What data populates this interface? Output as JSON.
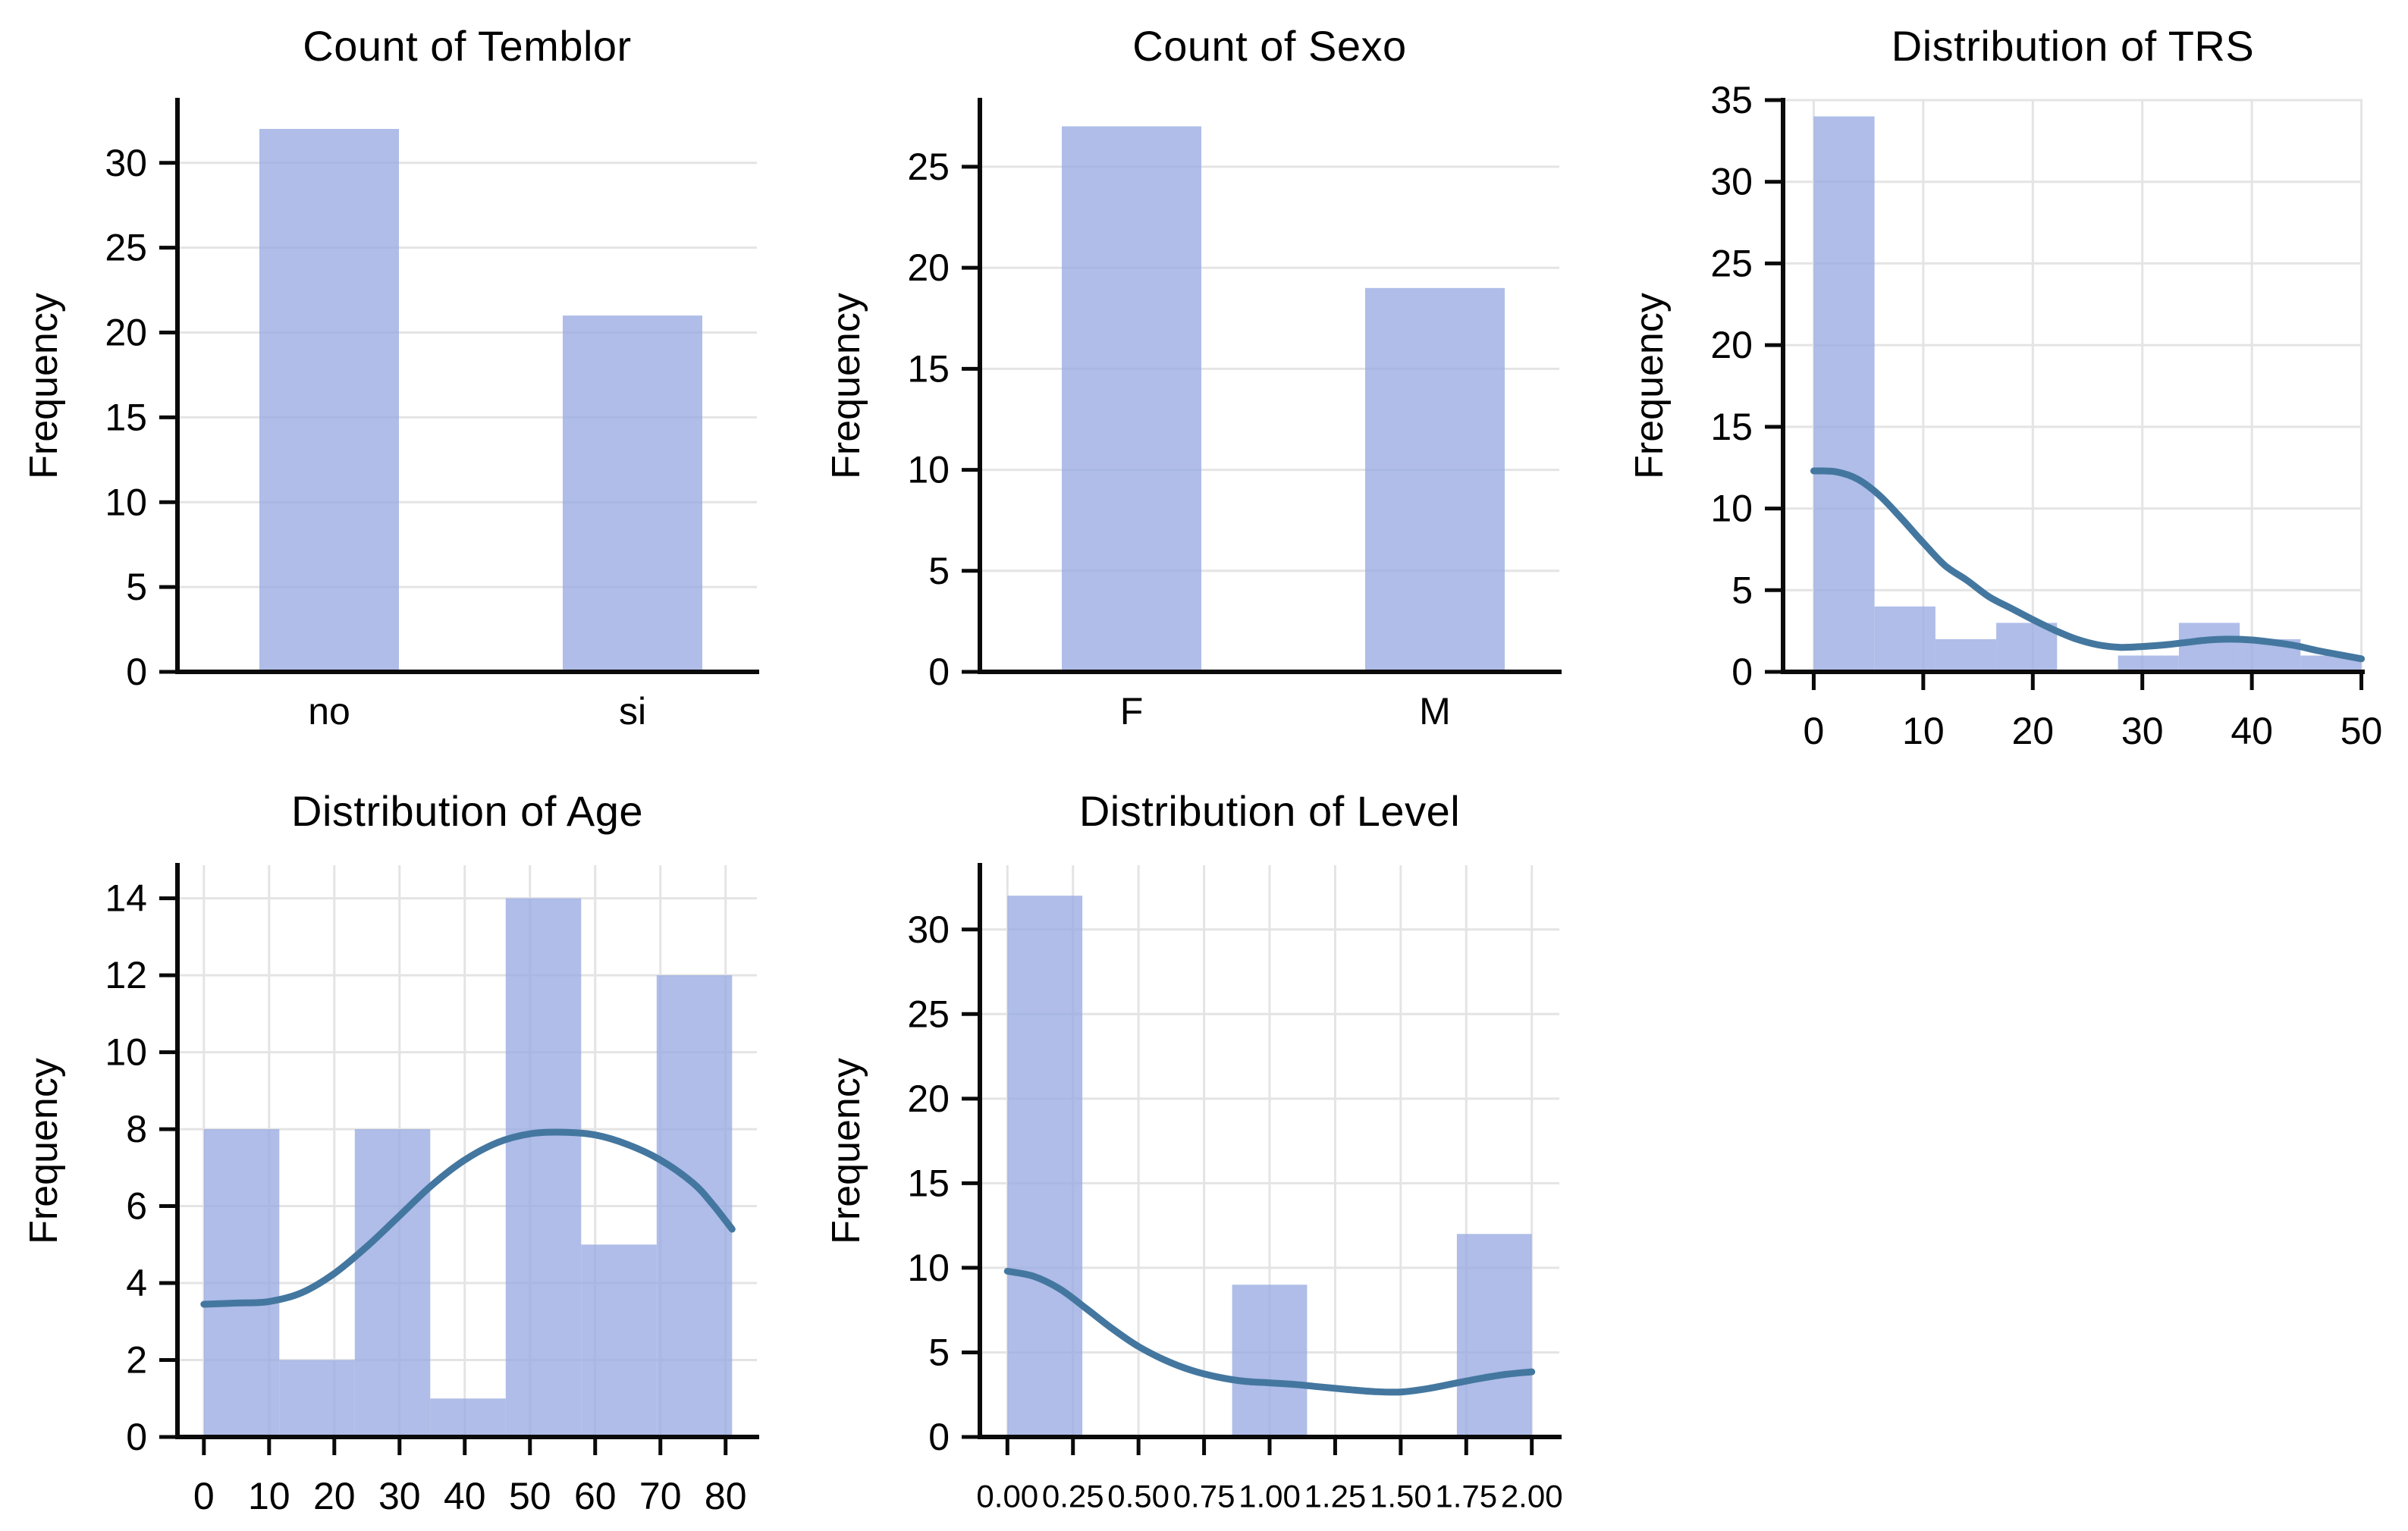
{
  "figure": {
    "background": "#ffffff",
    "bar_color": "#98aae2",
    "bar_opacity": 0.78,
    "bar_color_flat": "#b2bfe9",
    "kde_color": "#44779f",
    "kde_width": 9,
    "grid_color": "#e4e4e4",
    "axis_color": "#0a0a0a",
    "tick_font_size": 50,
    "ylabel_font_size": 52
  },
  "chart_data": [
    {
      "type": "bar",
      "title": "Count of Temblor",
      "ylabel": "Frequency",
      "categories": [
        "no",
        "si"
      ],
      "values": [
        32,
        21
      ],
      "bar_width": 0.46,
      "xlim": [
        -0.5,
        1.41
      ],
      "ylim": [
        0,
        33.7
      ],
      "yticks": [
        0,
        5,
        10,
        15,
        20,
        25,
        30
      ],
      "grid": "horizontal",
      "legend": "none"
    },
    {
      "type": "bar",
      "title": "Count of Sexo",
      "ylabel": "Frequency",
      "categories": [
        "F",
        "M"
      ],
      "values": [
        27,
        19
      ],
      "bar_width": 0.46,
      "xlim": [
        -0.5,
        1.41
      ],
      "ylim": [
        0,
        28.3
      ],
      "yticks": [
        0,
        5,
        10,
        15,
        20,
        25
      ],
      "grid": "horizontal",
      "legend": "none"
    },
    {
      "type": "histogram",
      "title": "Distribution of TRS",
      "ylabel": "Frequency",
      "bins": {
        "start": 0,
        "end": 50,
        "counts": [
          34,
          4,
          2,
          3,
          0,
          1,
          3,
          2,
          1
        ]
      },
      "kde": [
        [
          0,
          12.3
        ],
        [
          2,
          12.25
        ],
        [
          4,
          11.8
        ],
        [
          6,
          10.8
        ],
        [
          8,
          9.4
        ],
        [
          10,
          7.9
        ],
        [
          12,
          6.5
        ],
        [
          14,
          5.6
        ],
        [
          16,
          4.6
        ],
        [
          18,
          3.9
        ],
        [
          20,
          3.2
        ],
        [
          22,
          2.55
        ],
        [
          24,
          2.0
        ],
        [
          26,
          1.65
        ],
        [
          28,
          1.5
        ],
        [
          30,
          1.55
        ],
        [
          32,
          1.65
        ],
        [
          34,
          1.8
        ],
        [
          36,
          1.95
        ],
        [
          38,
          2.0
        ],
        [
          40,
          1.95
        ],
        [
          42,
          1.8
        ],
        [
          44,
          1.6
        ],
        [
          46,
          1.3
        ],
        [
          48,
          1.05
        ],
        [
          50,
          0.8
        ]
      ],
      "xlim": [
        -2.8,
        50.1
      ],
      "ylim": [
        0,
        35
      ],
      "xticks": [
        0,
        10,
        20,
        30,
        40,
        50
      ],
      "xtick_labels": [
        "0",
        "10",
        "20",
        "30",
        "40",
        "50"
      ],
      "yticks": [
        0,
        5,
        10,
        15,
        20,
        25,
        30,
        35
      ],
      "grid": "both",
      "xtick_font": 50
    },
    {
      "type": "histogram",
      "title": "Distribution of Age",
      "ylabel": "Frequency",
      "bins": {
        "start": 0,
        "end": 81,
        "counts": [
          8,
          2,
          8,
          1,
          14,
          5,
          12
        ]
      },
      "kde": [
        [
          0,
          3.45
        ],
        [
          5,
          3.48
        ],
        [
          10,
          3.52
        ],
        [
          15,
          3.75
        ],
        [
          20,
          4.25
        ],
        [
          25,
          4.95
        ],
        [
          30,
          5.75
        ],
        [
          35,
          6.55
        ],
        [
          40,
          7.2
        ],
        [
          45,
          7.65
        ],
        [
          50,
          7.88
        ],
        [
          55,
          7.92
        ],
        [
          60,
          7.85
        ],
        [
          65,
          7.6
        ],
        [
          70,
          7.2
        ],
        [
          75,
          6.6
        ],
        [
          78,
          6.05
        ],
        [
          81,
          5.4
        ]
      ],
      "xlim": [
        -4.05,
        84.8
      ],
      "ylim": [
        0,
        14.86
      ],
      "xticks": [
        0,
        10,
        20,
        30,
        40,
        50,
        60,
        70,
        80
      ],
      "xtick_labels": [
        "0",
        "10",
        "20",
        "30",
        "40",
        "50",
        "60",
        "70",
        "80"
      ],
      "yticks": [
        0,
        2,
        4,
        6,
        8,
        10,
        12,
        14
      ],
      "grid": "both",
      "xtick_font": 50
    },
    {
      "type": "histogram",
      "title": "Distribution of Level",
      "ylabel": "Frequency",
      "bins": {
        "start": 0,
        "end": 2,
        "counts": [
          32,
          0,
          0,
          9,
          0,
          0,
          12
        ]
      },
      "kde": [
        [
          0,
          9.8
        ],
        [
          0.1,
          9.5
        ],
        [
          0.2,
          8.75
        ],
        [
          0.3,
          7.6
        ],
        [
          0.4,
          6.4
        ],
        [
          0.5,
          5.35
        ],
        [
          0.6,
          4.55
        ],
        [
          0.7,
          3.95
        ],
        [
          0.8,
          3.55
        ],
        [
          0.9,
          3.3
        ],
        [
          1.0,
          3.2
        ],
        [
          1.1,
          3.1
        ],
        [
          1.2,
          2.95
        ],
        [
          1.3,
          2.8
        ],
        [
          1.4,
          2.68
        ],
        [
          1.5,
          2.66
        ],
        [
          1.6,
          2.85
        ],
        [
          1.7,
          3.15
        ],
        [
          1.8,
          3.45
        ],
        [
          1.9,
          3.7
        ],
        [
          2.0,
          3.85
        ]
      ],
      "xlim": [
        -0.105,
        2.105
      ],
      "ylim": [
        0,
        33.8
      ],
      "xticks": [
        0,
        0.25,
        0.5,
        0.75,
        1,
        1.25,
        1.5,
        1.75,
        2
      ],
      "xtick_labels": [
        "0.00",
        "0.25",
        "0.50",
        "0.75",
        "1.00",
        "1.25",
        "1.50",
        "1.75",
        "2.00"
      ],
      "yticks": [
        0,
        5,
        10,
        15,
        20,
        25,
        30
      ],
      "grid": "both",
      "xtick_font": 42
    }
  ]
}
